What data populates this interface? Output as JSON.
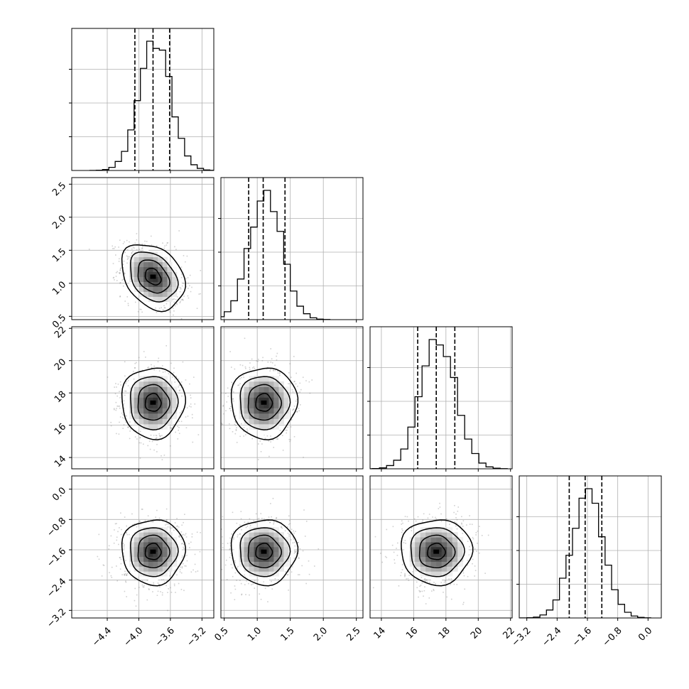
{
  "chart_data": {
    "type": "corner",
    "grid": true,
    "parameters": [
      {
        "axis_range": [
          -4.85,
          -3.05
        ],
        "ticks": [
          -4.4,
          -4.0,
          -3.6,
          -3.2
        ],
        "tick_labels": [
          "−4.4",
          "−4.0",
          "−3.6",
          "−3.2"
        ],
        "mean": -3.82,
        "sigma": 0.2,
        "quantiles": [
          -4.05,
          -3.82,
          -3.61
        ]
      },
      {
        "axis_range": [
          0.45,
          2.6
        ],
        "ticks": [
          0.5,
          1.0,
          1.5,
          2.0,
          2.5
        ],
        "tick_labels": [
          "0.5",
          "1.0",
          "1.5",
          "2.0",
          "2.5"
        ],
        "mean": 1.1,
        "sigma": 0.25,
        "quantiles": [
          0.87,
          1.09,
          1.42
        ]
      },
      {
        "axis_range": [
          13.3,
          22.1
        ],
        "ticks": [
          14,
          16,
          18,
          20,
          22
        ],
        "tick_labels": [
          "14",
          "16",
          "18",
          "20",
          "22"
        ],
        "mean": 17.4,
        "sigma": 1.1,
        "quantiles": [
          16.25,
          17.4,
          18.55
        ]
      },
      {
        "axis_range": [
          -3.4,
          0.35
        ],
        "ticks": [
          -3.2,
          -2.4,
          -1.6,
          -0.8,
          0.0
        ],
        "tick_labels": [
          "−3.2",
          "−2.4",
          "−1.6",
          "−0.8",
          "0.0"
        ],
        "mean": -1.65,
        "sigma": 0.43,
        "quantiles": [
          -2.08,
          -1.66,
          -1.22
        ]
      }
    ],
    "contour_levels_sigma": [
      0.5,
      1.0,
      1.5,
      2.0
    ]
  }
}
